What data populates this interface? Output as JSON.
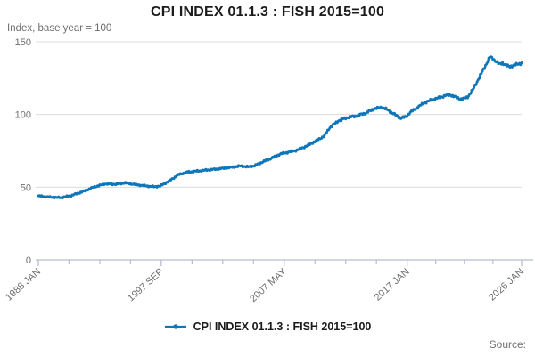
{
  "title": "CPI INDEX 01.1.3 : FISH 2015=100",
  "subtitle": "Index, base year = 100",
  "source_label": "Source:",
  "legend": {
    "label": "CPI INDEX 01.1.3 : FISH 2015=100"
  },
  "colors": {
    "line": "#0f76b8",
    "grid": "#dcdcdc",
    "axis": "#b3bdd0",
    "muted_text": "#6e6e6e",
    "title_text": "#1c1c1c"
  },
  "chart_data": {
    "type": "line",
    "title": "CPI INDEX 01.1.3 : FISH 2015=100",
    "ylabel": "Index, base year = 100",
    "ylim": [
      0,
      150
    ],
    "yticks": [
      0,
      50,
      100,
      150
    ],
    "grid": "horizontal",
    "legend_position": "bottom-center",
    "x_axis": {
      "frequency": "monthly",
      "start": "1988-01",
      "end": "2026-01",
      "labeled_ticks": [
        {
          "month": "1988-01",
          "label": "1988 JAN"
        },
        {
          "month": "1997-09",
          "label": "1997 SEP"
        },
        {
          "month": "2007-05",
          "label": "2007 MAY"
        },
        {
          "month": "2017-01",
          "label": "2017 JAN"
        },
        {
          "month": "2026-01",
          "label": "2026 JAN"
        }
      ],
      "minor_ticks_between_labels": 3
    },
    "series": [
      {
        "name": "CPI INDEX 01.1.3 : FISH 2015=100",
        "note": "monthly index values; anchor points read from chart, intermediate months interpolated with small monthly wiggle",
        "anchors": [
          [
            "1988-01",
            44.0
          ],
          [
            "1988-11",
            43.2
          ],
          [
            "1989-10",
            42.8
          ],
          [
            "1990-08",
            44.2
          ],
          [
            "1991-09",
            47.5
          ],
          [
            "1992-05",
            50.0
          ],
          [
            "1993-04",
            52.3
          ],
          [
            "1994-02",
            52.0
          ],
          [
            "1994-11",
            53.0
          ],
          [
            "1995-07",
            52.0
          ],
          [
            "1996-03",
            51.2
          ],
          [
            "1997-02",
            50.3
          ],
          [
            "1997-08",
            50.8
          ],
          [
            "1998-05",
            54.5
          ],
          [
            "1999-01",
            58.5
          ],
          [
            "1999-09",
            60.3
          ],
          [
            "2000-06",
            61.0
          ],
          [
            "2001-04",
            61.8
          ],
          [
            "2002-03",
            62.6
          ],
          [
            "2003-02",
            63.6
          ],
          [
            "2003-12",
            64.6
          ],
          [
            "2004-07",
            64.0
          ],
          [
            "2005-01",
            64.8
          ],
          [
            "2005-09",
            67.5
          ],
          [
            "2006-05",
            70.0
          ],
          [
            "2007-02",
            73.0
          ],
          [
            "2007-10",
            74.3
          ],
          [
            "2008-05",
            75.5
          ],
          [
            "2009-01",
            78.0
          ],
          [
            "2009-09",
            81.0
          ],
          [
            "2010-04",
            84.0
          ],
          [
            "2010-07",
            85.5
          ],
          [
            "2010-12",
            91.0
          ],
          [
            "2011-09",
            96.0
          ],
          [
            "2012-05",
            98.0
          ],
          [
            "2013-01",
            99.0
          ],
          [
            "2013-10",
            101.0
          ],
          [
            "2014-06",
            104.0
          ],
          [
            "2015-01",
            105.0
          ],
          [
            "2015-06",
            103.5
          ],
          [
            "2015-11",
            101.0
          ],
          [
            "2016-07",
            97.5
          ],
          [
            "2016-12",
            98.5
          ],
          [
            "2017-04",
            101.5
          ],
          [
            "2017-11",
            105.0
          ],
          [
            "2018-05",
            108.0
          ],
          [
            "2018-12",
            110.0
          ],
          [
            "2019-07",
            111.5
          ],
          [
            "2020-01",
            113.0
          ],
          [
            "2020-06",
            113.5
          ],
          [
            "2020-12",
            111.5
          ],
          [
            "2021-05",
            110.5
          ],
          [
            "2021-10",
            112.0
          ],
          [
            "2022-03",
            117.0
          ],
          [
            "2022-08",
            124.0
          ],
          [
            "2023-01",
            131.0
          ],
          [
            "2023-07",
            139.5
          ],
          [
            "2023-09",
            139.0
          ],
          [
            "2024-01",
            136.5
          ],
          [
            "2024-04",
            134.5
          ],
          [
            "2024-07",
            135.5
          ],
          [
            "2024-11",
            133.5
          ],
          [
            "2025-02",
            133.0
          ],
          [
            "2025-06",
            134.0
          ],
          [
            "2025-09",
            134.5
          ],
          [
            "2026-01",
            135.5
          ]
        ]
      }
    ]
  }
}
